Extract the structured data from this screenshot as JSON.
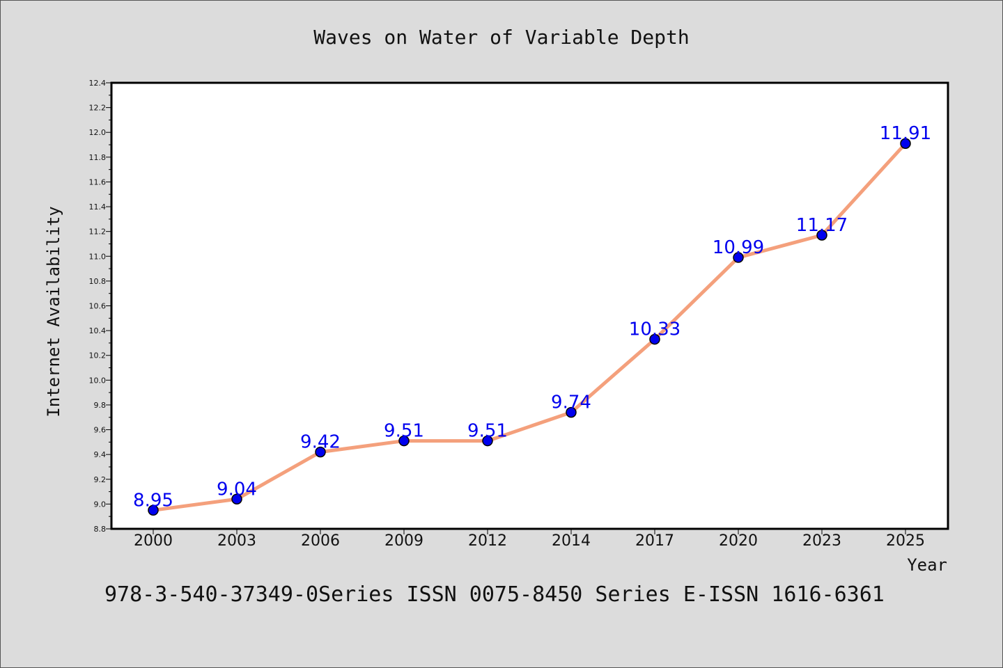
{
  "chart_data": {
    "type": "line",
    "title": "Waves on Water of Variable Depth",
    "xlabel": "Year",
    "ylabel": "Internet Availability",
    "categories": [
      "2000",
      "2003",
      "2006",
      "2009",
      "2012",
      "2014",
      "2017",
      "2020",
      "2023",
      "2025"
    ],
    "series": [
      {
        "values": [
          8.95,
          9.04,
          9.42,
          9.51,
          9.51,
          9.74,
          10.33,
          10.99,
          11.17,
          11.91
        ],
        "labels": [
          "8.95",
          "9.04",
          "9.42",
          "9.51",
          "9.51",
          "9.74",
          "10.33",
          "10.99",
          "11.17",
          "11.91"
        ]
      }
    ],
    "ylim": [
      8.8,
      12.4
    ],
    "yticks": [
      "8.8",
      "9.0",
      "9.2",
      "9.4",
      "9.6",
      "9.8",
      "10.0",
      "10.2",
      "10.4",
      "10.6",
      "10.8",
      "11.0",
      "11.2",
      "11.4",
      "11.6",
      "11.8",
      "12.0",
      "12.2",
      "12.4"
    ],
    "grid": false,
    "line_color": "#f4a07c",
    "marker_color": "#0000ee",
    "label_color": "#0000ee",
    "footer": "978-3-540-37349-0Series ISSN 0075-8450 Series E-ISSN 1616-6361"
  }
}
